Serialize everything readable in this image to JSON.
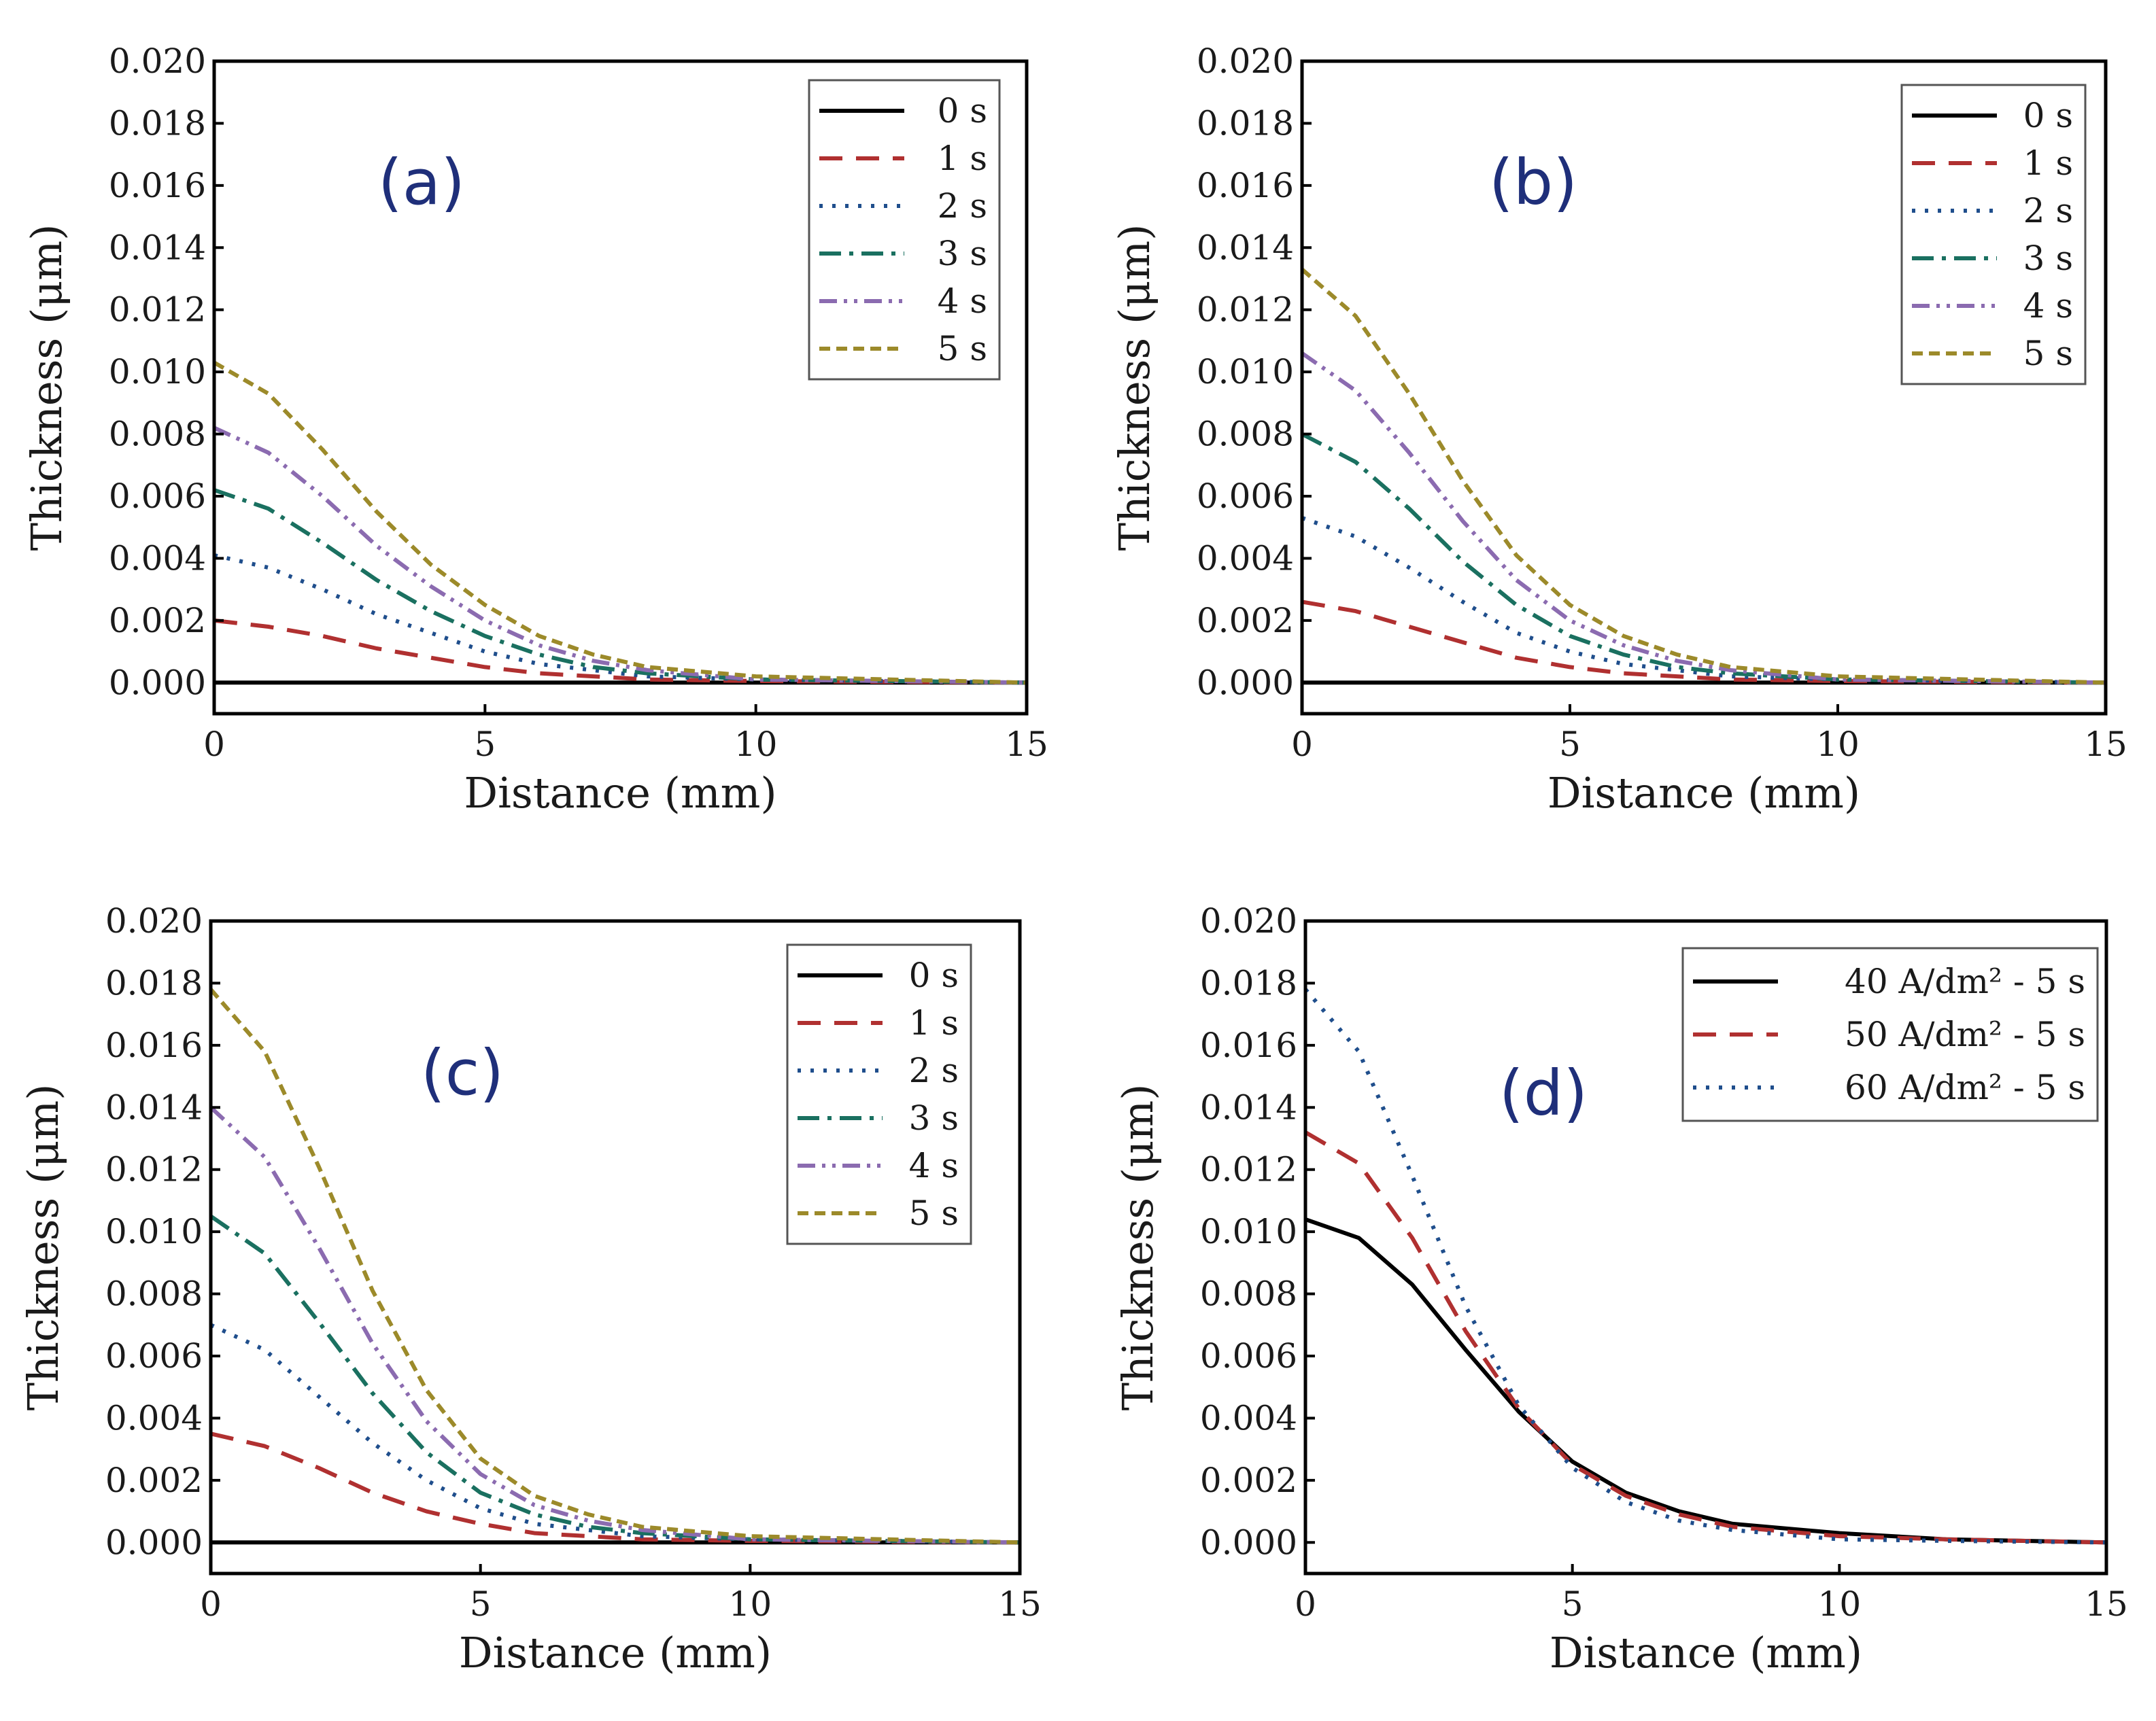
{
  "chart_data": [
    {
      "type": "line",
      "panel_label": "(a)",
      "xlabel": "Distance (mm)",
      "ylabel": "Thickness (μm)",
      "xlim": [
        0,
        15
      ],
      "ylim": [
        -0.001,
        0.02
      ],
      "xticks": [
        "0",
        "5",
        "10",
        "15"
      ],
      "yticks": [
        "0.000",
        "0.002",
        "0.004",
        "0.006",
        "0.008",
        "0.010",
        "0.012",
        "0.014",
        "0.016",
        "0.018",
        "0.020"
      ],
      "legend_position": "top-right",
      "series": [
        {
          "name": "0 s",
          "color": "#000000",
          "dash": "solid",
          "x": [
            0,
            5,
            10,
            15
          ],
          "values": [
            0,
            0,
            0,
            0
          ]
        },
        {
          "name": "1 s",
          "color": "#b03030",
          "dash": "dash",
          "x": [
            0,
            1,
            2,
            3,
            4,
            5,
            6,
            7,
            8,
            10,
            15
          ],
          "values": [
            0.002,
            0.0018,
            0.0015,
            0.0011,
            0.0008,
            0.0005,
            0.0003,
            0.0002,
            0.0001,
            5e-05,
            0.0
          ]
        },
        {
          "name": "2 s",
          "color": "#1f4e8c",
          "dash": "dot",
          "x": [
            0,
            1,
            2,
            3,
            4,
            5,
            6,
            7,
            8,
            10,
            15
          ],
          "values": [
            0.0041,
            0.0037,
            0.003,
            0.0022,
            0.0016,
            0.001,
            0.0006,
            0.0004,
            0.0002,
            0.0001,
            0.0
          ]
        },
        {
          "name": "3 s",
          "color": "#1a7060",
          "dash": "dashdot",
          "x": [
            0,
            1,
            2,
            3,
            4,
            5,
            6,
            7,
            8,
            10,
            15
          ],
          "values": [
            0.0062,
            0.0056,
            0.0045,
            0.0033,
            0.0023,
            0.0015,
            0.0009,
            0.0005,
            0.0003,
            0.0001,
            0.0
          ]
        },
        {
          "name": "4 s",
          "color": "#8b6bb0",
          "dash": "dashdotdot",
          "x": [
            0,
            1,
            2,
            3,
            4,
            5,
            6,
            7,
            8,
            10,
            15
          ],
          "values": [
            0.0082,
            0.0074,
            0.006,
            0.0044,
            0.0031,
            0.002,
            0.0012,
            0.0007,
            0.0004,
            0.0001,
            0.0
          ]
        },
        {
          "name": "5 s",
          "color": "#9c8a2a",
          "dash": "shortdash",
          "x": [
            0,
            1,
            2,
            3,
            4,
            5,
            6,
            7,
            8,
            10,
            15
          ],
          "values": [
            0.0103,
            0.0093,
            0.0075,
            0.0055,
            0.0038,
            0.0025,
            0.0015,
            0.0009,
            0.0005,
            0.0002,
            0.0
          ]
        }
      ]
    },
    {
      "type": "line",
      "panel_label": "(b)",
      "xlabel": "Distance (mm)",
      "ylabel": "Thickness (μm)",
      "xlim": [
        0,
        15
      ],
      "ylim": [
        -0.001,
        0.02
      ],
      "xticks": [
        "0",
        "5",
        "10",
        "15"
      ],
      "yticks": [
        "0.000",
        "0.002",
        "0.004",
        "0.006",
        "0.008",
        "0.010",
        "0.012",
        "0.014",
        "0.016",
        "0.018",
        "0.020"
      ],
      "legend_position": "top-right",
      "series": [
        {
          "name": "0 s",
          "color": "#000000",
          "dash": "solid",
          "x": [
            0,
            5,
            10,
            15
          ],
          "values": [
            0,
            0,
            0,
            0
          ]
        },
        {
          "name": "1 s",
          "color": "#b03030",
          "dash": "dash",
          "x": [
            0,
            1,
            2,
            3,
            4,
            5,
            6,
            7,
            8,
            10,
            15
          ],
          "values": [
            0.0026,
            0.0023,
            0.0018,
            0.0013,
            0.0008,
            0.0005,
            0.0003,
            0.0002,
            0.0001,
            5e-05,
            0.0
          ]
        },
        {
          "name": "2 s",
          "color": "#1f4e8c",
          "dash": "dot",
          "x": [
            0,
            1,
            2,
            3,
            4,
            5,
            6,
            7,
            8,
            10,
            15
          ],
          "values": [
            0.0053,
            0.0047,
            0.0037,
            0.0026,
            0.0016,
            0.001,
            0.0006,
            0.0004,
            0.0002,
            0.0001,
            0.0
          ]
        },
        {
          "name": "3 s",
          "color": "#1a7060",
          "dash": "dashdot",
          "x": [
            0,
            1,
            2,
            3,
            4,
            5,
            6,
            7,
            8,
            10,
            15
          ],
          "values": [
            0.008,
            0.0071,
            0.0056,
            0.0039,
            0.0025,
            0.0015,
            0.0009,
            0.0005,
            0.0003,
            0.0001,
            0.0
          ]
        },
        {
          "name": "4 s",
          "color": "#8b6bb0",
          "dash": "dashdotdot",
          "x": [
            0,
            1,
            2,
            3,
            4,
            5,
            6,
            7,
            8,
            10,
            15
          ],
          "values": [
            0.0106,
            0.0094,
            0.0074,
            0.0052,
            0.0033,
            0.002,
            0.0012,
            0.0007,
            0.0004,
            0.0001,
            0.0
          ]
        },
        {
          "name": "5 s",
          "color": "#9c8a2a",
          "dash": "shortdash",
          "x": [
            0,
            1,
            2,
            3,
            4,
            5,
            6,
            7,
            8,
            10,
            15
          ],
          "values": [
            0.0133,
            0.0118,
            0.0093,
            0.0065,
            0.0041,
            0.0025,
            0.0015,
            0.0009,
            0.0005,
            0.0002,
            0.0
          ]
        }
      ]
    },
    {
      "type": "line",
      "panel_label": "(c)",
      "xlabel": "Distance (mm)",
      "ylabel": "Thickness (μm)",
      "xlim": [
        0,
        15
      ],
      "ylim": [
        -0.001,
        0.02
      ],
      "xticks": [
        "0",
        "5",
        "10",
        "15"
      ],
      "yticks": [
        "0.000",
        "0.002",
        "0.004",
        "0.006",
        "0.008",
        "0.010",
        "0.012",
        "0.014",
        "0.016",
        "0.018",
        "0.020"
      ],
      "legend_position": "top-right",
      "series": [
        {
          "name": "0 s",
          "color": "#000000",
          "dash": "solid",
          "x": [
            0,
            5,
            10,
            15
          ],
          "values": [
            0,
            0,
            0,
            0
          ]
        },
        {
          "name": "1 s",
          "color": "#b03030",
          "dash": "dash",
          "x": [
            0,
            1,
            2,
            3,
            4,
            5,
            6,
            7,
            8,
            10,
            15
          ],
          "values": [
            0.0035,
            0.0031,
            0.0024,
            0.0016,
            0.001,
            0.0006,
            0.0003,
            0.0002,
            0.0001,
            5e-05,
            0.0
          ]
        },
        {
          "name": "2 s",
          "color": "#1f4e8c",
          "dash": "dot",
          "x": [
            0,
            1,
            2,
            3,
            4,
            5,
            6,
            7,
            8,
            10,
            15
          ],
          "values": [
            0.007,
            0.0062,
            0.0047,
            0.0032,
            0.002,
            0.0011,
            0.0006,
            0.0004,
            0.0002,
            0.0001,
            0.0
          ]
        },
        {
          "name": "3 s",
          "color": "#1a7060",
          "dash": "dashdot",
          "x": [
            0,
            1,
            2,
            3,
            4,
            5,
            6,
            7,
            8,
            10,
            15
          ],
          "values": [
            0.0105,
            0.0093,
            0.0071,
            0.0048,
            0.0029,
            0.0016,
            0.0009,
            0.0005,
            0.0003,
            0.0001,
            0.0
          ]
        },
        {
          "name": "4 s",
          "color": "#8b6bb0",
          "dash": "dashdotdot",
          "x": [
            0,
            1,
            2,
            3,
            4,
            5,
            6,
            7,
            8,
            10,
            15
          ],
          "values": [
            0.014,
            0.0124,
            0.0095,
            0.0064,
            0.0039,
            0.0022,
            0.0012,
            0.0007,
            0.0004,
            0.0001,
            0.0
          ]
        },
        {
          "name": "5 s",
          "color": "#9c8a2a",
          "dash": "shortdash",
          "x": [
            0,
            1,
            2,
            3,
            4,
            5,
            6,
            7,
            8,
            10,
            15
          ],
          "values": [
            0.0178,
            0.0158,
            0.0121,
            0.0081,
            0.0049,
            0.0027,
            0.0015,
            0.0009,
            0.0005,
            0.0002,
            0.0
          ]
        }
      ]
    },
    {
      "type": "line",
      "panel_label": "(d)",
      "xlabel": "Distance (mm)",
      "ylabel": "Thickness (μm)",
      "xlim": [
        0,
        15
      ],
      "ylim": [
        -0.001,
        0.02
      ],
      "xticks": [
        "0",
        "5",
        "10",
        "15"
      ],
      "yticks": [
        "0.000",
        "0.002",
        "0.004",
        "0.006",
        "0.008",
        "0.010",
        "0.012",
        "0.014",
        "0.016",
        "0.018",
        "0.020"
      ],
      "legend_position": "top-right",
      "series": [
        {
          "name": "40 A/dm² - 5 s",
          "color": "#000000",
          "dash": "solid",
          "x": [
            0,
            1,
            2,
            3,
            4,
            5,
            6,
            7,
            8,
            10,
            12,
            15
          ],
          "values": [
            0.0104,
            0.0098,
            0.0083,
            0.0062,
            0.0042,
            0.0026,
            0.0016,
            0.001,
            0.0006,
            0.0003,
            0.0001,
            0.0
          ]
        },
        {
          "name": "50 A/dm² - 5 s",
          "color": "#b03030",
          "dash": "dash",
          "x": [
            0,
            1,
            2,
            3,
            4,
            5,
            6,
            7,
            8,
            10,
            12,
            15
          ],
          "values": [
            0.0132,
            0.0122,
            0.0098,
            0.0068,
            0.0043,
            0.0025,
            0.0015,
            0.0009,
            0.0005,
            0.0002,
            0.0001,
            0.0
          ]
        },
        {
          "name": "60 A/dm² - 5 s",
          "color": "#1f4e8c",
          "dash": "dot",
          "x": [
            0,
            1,
            2,
            3,
            4,
            5,
            6,
            7,
            8,
            10,
            12,
            15
          ],
          "values": [
            0.0178,
            0.0158,
            0.0118,
            0.0076,
            0.0044,
            0.0024,
            0.0013,
            0.0007,
            0.0004,
            0.0001,
            5e-05,
            0.0
          ]
        }
      ]
    }
  ]
}
